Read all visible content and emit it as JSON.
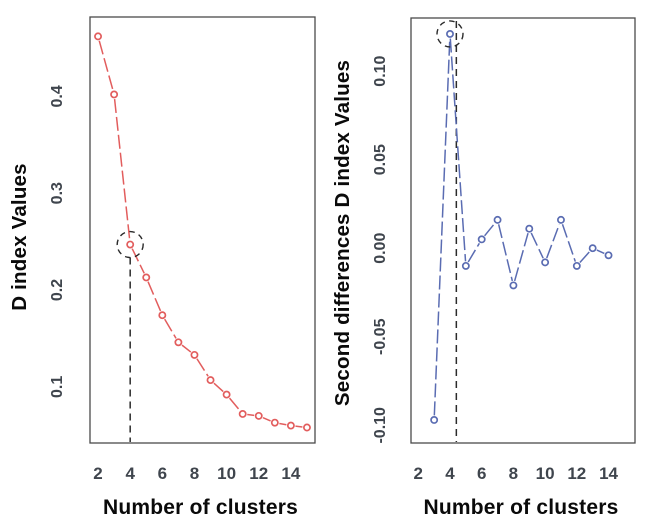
{
  "figure": {
    "background": "#ffffff",
    "description": "NbClust style diagnostic plots: D index and second differences of D index versus number of clusters, best k = 4 highlighted with dashed circle and dashed vertical line"
  },
  "chart_data": [
    {
      "type": "line",
      "panel": "left",
      "title": "",
      "xlabel": "Number of clusters",
      "ylabel": "D index Values",
      "x": [
        2,
        3,
        4,
        5,
        6,
        7,
        8,
        9,
        10,
        11,
        12,
        13,
        14,
        15
      ],
      "y": [
        0.462,
        0.402,
        0.247,
        0.213,
        0.174,
        0.146,
        0.133,
        0.107,
        0.092,
        0.072,
        0.07,
        0.063,
        0.06,
        0.058
      ],
      "xticks": [
        2,
        4,
        6,
        8,
        10,
        12,
        14
      ],
      "xtick_labels": [
        "2",
        "4",
        "6",
        "8",
        "10",
        "12",
        "14"
      ],
      "yticks": [
        0.1,
        0.2,
        0.3,
        0.4
      ],
      "ytick_labels": [
        "0.1",
        "0.2",
        "0.3",
        "0.4"
      ],
      "xlim": [
        1.5,
        15.5
      ],
      "ylim": [
        0.042,
        0.482
      ],
      "grid": false,
      "legend": null,
      "line_color": "#e25d5d",
      "marker": "open-circle",
      "line_style": "dashed",
      "annotations": {
        "circled_point_x": 4,
        "circled_point_y": 0.247,
        "vline_x": 4,
        "vline_span": "below-point",
        "annotation_color": "#2b2b2b"
      }
    },
    {
      "type": "line",
      "panel": "right",
      "title": "",
      "xlabel": "Number of clusters",
      "ylabel": "Second differences D index Values",
      "x": [
        3,
        4,
        5,
        6,
        7,
        8,
        9,
        10,
        11,
        12,
        13,
        14
      ],
      "y": [
        -0.097,
        0.121,
        -0.01,
        0.005,
        0.016,
        -0.021,
        0.011,
        -0.008,
        0.016,
        -0.01,
        0.0,
        -0.004
      ],
      "xticks": [
        2,
        4,
        6,
        8,
        10,
        12,
        14
      ],
      "xtick_labels": [
        "2",
        "4",
        "6",
        "8",
        "10",
        "12",
        "14"
      ],
      "yticks": [
        -0.1,
        -0.05,
        0.0,
        0.05,
        0.1
      ],
      "ytick_labels": [
        "-0.10",
        "-0.05",
        "0.00",
        "0.05",
        "0.10"
      ],
      "xlim": [
        1.54,
        15.67
      ],
      "ylim": [
        -0.11,
        0.13
      ],
      "grid": false,
      "legend": null,
      "line_color": "#5a6cb2",
      "marker": "open-circle",
      "line_style": "dashed",
      "annotations": {
        "circled_point_x": 4,
        "circled_point_y": 0.121,
        "vline_x": 4.4,
        "vline_span": "full",
        "annotation_color": "#2b2b2b"
      }
    }
  ],
  "style": {
    "panel_border_color": "#4a4a4a",
    "tick_label_color": "#3f454d",
    "axis_title_color": "#0a0a0a",
    "marker_fill": "#ffffff"
  }
}
